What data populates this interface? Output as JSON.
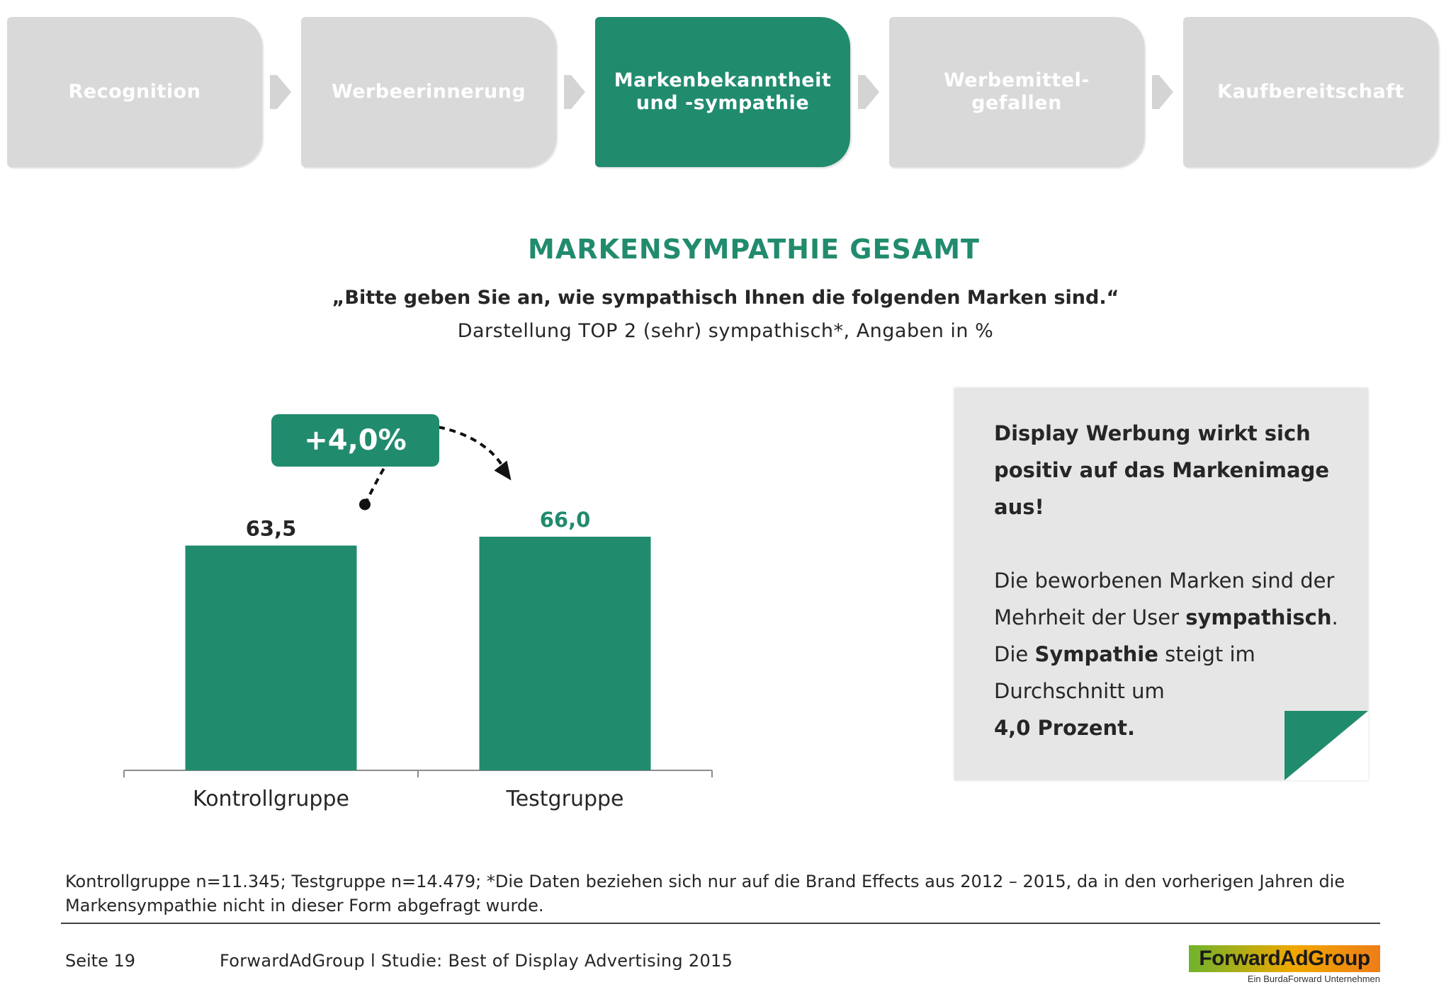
{
  "steps": [
    {
      "label": "Recognition",
      "active": false
    },
    {
      "label": "Werbeerinnerung",
      "active": false
    },
    {
      "label": "Markenbekanntheit\nund -sympathie",
      "active": true
    },
    {
      "label": "Werbemittel-\ngefallen",
      "active": false
    },
    {
      "label": "Kaufbereitschaft",
      "active": false
    }
  ],
  "header": {
    "title": "MARKENSYMPATHIE GESAMT",
    "question": "„Bitte geben Sie an, wie sympathisch Ihnen die folgenden Marken sind.“",
    "subtitle": "Darstellung TOP 2 (sehr) sympathisch*,  Angaben in %"
  },
  "chart_data": {
    "type": "bar",
    "categories": [
      "Kontrollgruppe",
      "Testgruppe"
    ],
    "values": [
      63.5,
      66.0
    ],
    "data_labels": [
      "63,5",
      "66,0"
    ],
    "title": "MARKENSYMPATHIE GESAMT",
    "xlabel": "",
    "ylabel": "",
    "ylim": [
      0,
      100
    ],
    "grid": false,
    "bar_color": "#218b6e",
    "label_colors": [
      "#262626",
      "#218b6e"
    ],
    "annotation": "+4,0%"
  },
  "note": {
    "headline_lines": [
      "Display Werbung wirkt sich",
      "positiv auf das Markenimage",
      "aus!"
    ],
    "body": [
      [
        {
          "t": "Die beworbenen Marken sind der",
          "b": false
        }
      ],
      [
        {
          "t": "Mehrheit der User ",
          "b": false
        },
        {
          "t": "sympathisch",
          "b": true
        },
        {
          "t": ".",
          "b": false
        }
      ],
      [
        {
          "t": "Die ",
          "b": false
        },
        {
          "t": "Sympathie",
          "b": true
        },
        {
          "t": " steigt im",
          "b": false
        }
      ],
      [
        {
          "t": "Durchschnitt um",
          "b": false
        }
      ],
      [
        {
          "t": "4,0 Prozent.",
          "b": true
        }
      ]
    ]
  },
  "footer": {
    "footnote": "Kontrollgruppe n=11.345; Testgruppe n=14.479; *Die Daten beziehen sich nur auf die Brand Effects aus 2012 – 2015, da in den vorherigen Jahren die Markensympathie nicht in dieser Form abgefragt wurde.",
    "page": "Seite 19",
    "study": "ForwardAdGroup  l  Studie: Best of Display Advertising 2015"
  },
  "logo": {
    "text": "ForwardAdGroup",
    "sub": "Ein BurdaForward Unternehmen"
  },
  "colors": {
    "accent": "#218b6e",
    "step_inactive": "#d9d9d9",
    "note_bg": "#e6e6e6"
  }
}
